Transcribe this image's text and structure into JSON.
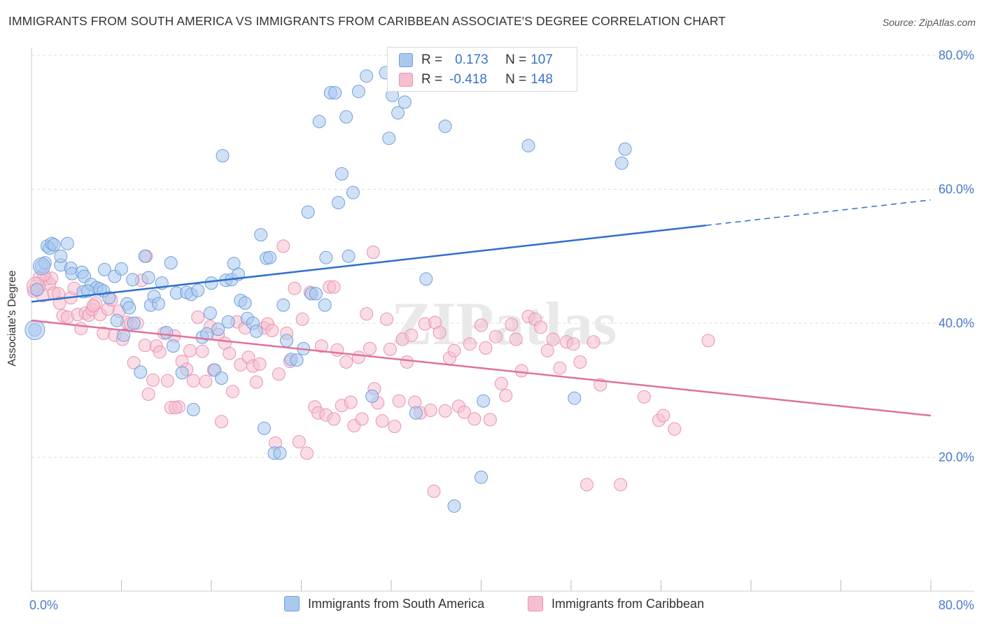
{
  "title": "IMMIGRANTS FROM SOUTH AMERICA VS IMMIGRANTS FROM CARIBBEAN ASSOCIATE'S DEGREE CORRELATION CHART",
  "source": "Source: ZipAtlas.com",
  "watermark": "ZIPatlas",
  "legend": {
    "rows": [
      {
        "r_label": "R =",
        "r_value": "0.173",
        "n_label": "N =",
        "n_value": "107"
      },
      {
        "r_label": "R =",
        "r_value": "-0.418",
        "n_label": "N =",
        "n_value": "148"
      }
    ]
  },
  "bottom_legend": [
    "Immigrants from South America",
    "Immigrants from Caribbean"
  ],
  "colors": {
    "series_a_fill": "#aac8ee",
    "series_a_stroke": "#6f9fdc",
    "series_a_line": "#2f6fce",
    "series_b_fill": "#f6bfd0",
    "series_b_stroke": "#e993b0",
    "series_b_line": "#e0729a",
    "axis_text": "#4a7cc9",
    "grid": "#dddddd"
  },
  "chart_data": {
    "type": "scatter",
    "title": "IMMIGRANTS FROM SOUTH AMERICA VS IMMIGRANTS FROM CARIBBEAN ASSOCIATE'S DEGREE CORRELATION CHART",
    "xlabel": "",
    "ylabel": "Associate's Degree",
    "xlim": [
      0,
      80
    ],
    "ylim": [
      0,
      80
    ],
    "x_tick_labels": [
      "0.0%",
      "80.0%"
    ],
    "y_tick_labels": [
      "20.0%",
      "40.0%",
      "60.0%",
      "80.0%"
    ],
    "y_ticks": [
      20,
      40,
      60,
      80
    ],
    "grid": true,
    "legend_position": "top-center",
    "series": [
      {
        "name": "Immigrants from South America",
        "R": 0.173,
        "N": 107,
        "trend": {
          "x": [
            0,
            60
          ],
          "y": [
            43.2,
            54.6
          ],
          "dashed_to": [
            80,
            58.4
          ]
        },
        "points": [
          [
            0.3,
            39.0
          ],
          [
            0.5,
            45.0
          ],
          [
            0.9,
            48.5
          ],
          [
            1.2,
            49.0
          ],
          [
            1.4,
            51.5
          ],
          [
            1.6,
            51.2
          ],
          [
            1.8,
            51.9
          ],
          [
            2.0,
            51.7
          ],
          [
            2.6,
            48.7
          ],
          [
            2.6,
            50.0
          ],
          [
            3.2,
            51.9
          ],
          [
            3.5,
            48.2
          ],
          [
            3.6,
            47.4
          ],
          [
            4.5,
            47.6
          ],
          [
            4.6,
            44.7
          ],
          [
            4.7,
            47.0
          ],
          [
            5.3,
            45.8
          ],
          [
            5.8,
            45.3
          ],
          [
            6.1,
            45.1
          ],
          [
            6.4,
            44.8
          ],
          [
            6.5,
            48.0
          ],
          [
            6.9,
            43.8
          ],
          [
            7.4,
            47.0
          ],
          [
            7.6,
            40.4
          ],
          [
            8.0,
            48.1
          ],
          [
            8.2,
            38.2
          ],
          [
            8.5,
            42.9
          ],
          [
            8.7,
            42.3
          ],
          [
            9.0,
            46.5
          ],
          [
            9.1,
            40.0
          ],
          [
            9.7,
            32.7
          ],
          [
            10.1,
            50.0
          ],
          [
            10.4,
            46.8
          ],
          [
            10.6,
            42.7
          ],
          [
            10.9,
            44.0
          ],
          [
            11.3,
            42.9
          ],
          [
            11.6,
            46.0
          ],
          [
            12.0,
            38.6
          ],
          [
            12.4,
            49.0
          ],
          [
            12.6,
            36.6
          ],
          [
            12.9,
            44.5
          ],
          [
            13.4,
            32.6
          ],
          [
            13.8,
            44.6
          ],
          [
            14.2,
            44.3
          ],
          [
            14.4,
            27.1
          ],
          [
            14.8,
            44.9
          ],
          [
            15.2,
            37.9
          ],
          [
            15.6,
            38.4
          ],
          [
            15.9,
            41.5
          ],
          [
            16.0,
            46.0
          ],
          [
            16.3,
            33.0
          ],
          [
            16.6,
            39.1
          ],
          [
            16.9,
            31.8
          ],
          [
            17.3,
            46.4
          ],
          [
            17.5,
            40.2
          ],
          [
            17.8,
            46.5
          ],
          [
            18.0,
            48.9
          ],
          [
            18.4,
            47.3
          ],
          [
            18.6,
            43.4
          ],
          [
            19.0,
            43.0
          ],
          [
            19.2,
            40.7
          ],
          [
            19.7,
            40.0
          ],
          [
            20.0,
            38.8
          ],
          [
            20.4,
            53.2
          ],
          [
            20.7,
            24.3
          ],
          [
            20.9,
            49.7
          ],
          [
            21.2,
            49.8
          ],
          [
            21.6,
            20.6
          ],
          [
            22.1,
            20.6
          ],
          [
            22.4,
            42.7
          ],
          [
            22.7,
            37.4
          ],
          [
            23.1,
            34.6
          ],
          [
            23.6,
            34.5
          ],
          [
            24.2,
            36.2
          ],
          [
            24.6,
            56.6
          ],
          [
            24.9,
            44.4
          ],
          [
            25.3,
            44.4
          ],
          [
            25.6,
            70.1
          ],
          [
            26.1,
            42.7
          ],
          [
            26.2,
            49.8
          ],
          [
            26.6,
            74.4
          ],
          [
            27.0,
            74.4
          ],
          [
            27.3,
            58.0
          ],
          [
            27.6,
            62.3
          ],
          [
            28.0,
            70.8
          ],
          [
            28.2,
            50.0
          ],
          [
            28.6,
            59.5
          ],
          [
            29.1,
            74.6
          ],
          [
            29.8,
            76.9
          ],
          [
            30.3,
            29.1
          ],
          [
            31.5,
            77.4
          ],
          [
            31.8,
            67.6
          ],
          [
            32.1,
            74.0
          ],
          [
            32.6,
            71.4
          ],
          [
            33.2,
            73.0
          ],
          [
            34.2,
            26.6
          ],
          [
            35.1,
            46.6
          ],
          [
            36.8,
            69.4
          ],
          [
            37.6,
            12.7
          ],
          [
            40.0,
            17.0
          ],
          [
            40.2,
            28.4
          ],
          [
            44.2,
            66.5
          ],
          [
            48.3,
            28.8
          ],
          [
            52.5,
            63.9
          ],
          [
            52.8,
            66.0
          ],
          [
            17.0,
            65.0
          ],
          [
            5.0,
            44.8
          ]
        ]
      },
      {
        "name": "Immigrants from Caribbean",
        "R": -0.418,
        "N": 148,
        "trend": {
          "x": [
            0,
            80
          ],
          "y": [
            40.4,
            26.2
          ]
        },
        "points": [
          [
            0.4,
            45.5
          ],
          [
            0.7,
            46.8
          ],
          [
            1.0,
            44.1
          ],
          [
            1.3,
            46.6
          ],
          [
            1.6,
            45.9
          ],
          [
            1.8,
            46.7
          ],
          [
            2.0,
            44.5
          ],
          [
            2.4,
            44.4
          ],
          [
            2.8,
            41.1
          ],
          [
            3.2,
            40.9
          ],
          [
            3.5,
            43.8
          ],
          [
            3.8,
            45.2
          ],
          [
            4.1,
            41.3
          ],
          [
            4.4,
            39.2
          ],
          [
            4.8,
            41.5
          ],
          [
            5.1,
            41.2
          ],
          [
            5.4,
            42.0
          ],
          [
            5.7,
            43.0
          ],
          [
            6.1,
            41.3
          ],
          [
            6.4,
            38.5
          ],
          [
            6.8,
            42.1
          ],
          [
            7.1,
            43.5
          ],
          [
            7.4,
            38.2
          ],
          [
            7.8,
            41.8
          ],
          [
            8.1,
            37.6
          ],
          [
            8.5,
            40.1
          ],
          [
            8.8,
            39.9
          ],
          [
            9.1,
            34.1
          ],
          [
            9.4,
            40.0
          ],
          [
            9.8,
            46.4
          ],
          [
            10.1,
            36.7
          ],
          [
            10.4,
            29.4
          ],
          [
            10.8,
            31.5
          ],
          [
            11.1,
            36.6
          ],
          [
            11.4,
            35.7
          ],
          [
            11.8,
            38.5
          ],
          [
            12.1,
            31.4
          ],
          [
            12.4,
            27.4
          ],
          [
            12.7,
            38.1
          ],
          [
            13.1,
            27.5
          ],
          [
            13.4,
            34.3
          ],
          [
            13.8,
            33.1
          ],
          [
            14.1,
            35.9
          ],
          [
            14.4,
            31.4
          ],
          [
            14.8,
            40.9
          ],
          [
            15.2,
            35.8
          ],
          [
            15.5,
            31.3
          ],
          [
            15.9,
            39.5
          ],
          [
            16.2,
            33.0
          ],
          [
            16.6,
            38.3
          ],
          [
            16.9,
            25.3
          ],
          [
            17.2,
            37.0
          ],
          [
            17.6,
            35.5
          ],
          [
            17.9,
            29.8
          ],
          [
            18.3,
            40.2
          ],
          [
            18.6,
            33.8
          ],
          [
            19.0,
            39.3
          ],
          [
            19.3,
            34.9
          ],
          [
            19.7,
            33.6
          ],
          [
            20.0,
            31.2
          ],
          [
            20.3,
            33.9
          ],
          [
            20.7,
            39.3
          ],
          [
            21.0,
            39.9
          ],
          [
            21.4,
            38.9
          ],
          [
            21.7,
            22.1
          ],
          [
            22.0,
            32.4
          ],
          [
            22.4,
            51.5
          ],
          [
            22.7,
            38.5
          ],
          [
            23.0,
            34.3
          ],
          [
            23.4,
            45.2
          ],
          [
            23.8,
            22.3
          ],
          [
            24.1,
            40.6
          ],
          [
            24.5,
            20.6
          ],
          [
            24.8,
            44.6
          ],
          [
            25.2,
            27.5
          ],
          [
            25.5,
            26.6
          ],
          [
            25.8,
            36.6
          ],
          [
            26.2,
            26.3
          ],
          [
            26.5,
            45.4
          ],
          [
            26.9,
            25.7
          ],
          [
            27.2,
            36.0
          ],
          [
            27.6,
            27.7
          ],
          [
            28.0,
            34.2
          ],
          [
            28.4,
            28.2
          ],
          [
            28.7,
            24.7
          ],
          [
            29.1,
            34.9
          ],
          [
            29.4,
            25.7
          ],
          [
            29.8,
            41.4
          ],
          [
            30.1,
            36.2
          ],
          [
            30.5,
            30.2
          ],
          [
            30.8,
            28.1
          ],
          [
            31.2,
            25.4
          ],
          [
            31.6,
            40.6
          ],
          [
            31.9,
            36.1
          ],
          [
            32.3,
            24.6
          ],
          [
            32.7,
            28.4
          ],
          [
            33.0,
            37.6
          ],
          [
            33.4,
            34.2
          ],
          [
            33.8,
            38.2
          ],
          [
            34.1,
            28.2
          ],
          [
            34.6,
            26.6
          ],
          [
            35.0,
            39.9
          ],
          [
            35.5,
            27.0
          ],
          [
            35.9,
            40.1
          ],
          [
            36.3,
            38.6
          ],
          [
            36.8,
            26.9
          ],
          [
            37.2,
            34.8
          ],
          [
            37.6,
            35.9
          ],
          [
            38.0,
            27.6
          ],
          [
            38.5,
            26.7
          ],
          [
            39.0,
            36.9
          ],
          [
            39.4,
            25.7
          ],
          [
            40.0,
            39.7
          ],
          [
            40.4,
            36.3
          ],
          [
            40.8,
            25.6
          ],
          [
            41.3,
            38.0
          ],
          [
            41.8,
            31.0
          ],
          [
            42.2,
            29.2
          ],
          [
            42.7,
            39.8
          ],
          [
            43.1,
            37.6
          ],
          [
            43.6,
            32.9
          ],
          [
            44.2,
            41.0
          ],
          [
            44.8,
            40.6
          ],
          [
            45.3,
            39.4
          ],
          [
            45.9,
            35.9
          ],
          [
            46.4,
            37.6
          ],
          [
            47.0,
            33.3
          ],
          [
            47.6,
            37.2
          ],
          [
            48.2,
            36.9
          ],
          [
            48.8,
            34.2
          ],
          [
            49.4,
            15.9
          ],
          [
            50.0,
            37.2
          ],
          [
            50.6,
            30.8
          ],
          [
            52.4,
            15.9
          ],
          [
            54.5,
            29.0
          ],
          [
            55.8,
            25.5
          ],
          [
            56.2,
            26.2
          ],
          [
            57.2,
            24.2
          ],
          [
            60.2,
            37.4
          ],
          [
            35.8,
            14.9
          ],
          [
            30.4,
            50.6
          ],
          [
            10.2,
            50.0
          ],
          [
            26.9,
            45.4
          ],
          [
            5.5,
            42.6
          ],
          [
            12.8,
            27.4
          ],
          [
            0.2,
            44.8
          ],
          [
            1.1,
            47.2
          ],
          [
            2.5,
            43.0
          ]
        ]
      }
    ]
  }
}
